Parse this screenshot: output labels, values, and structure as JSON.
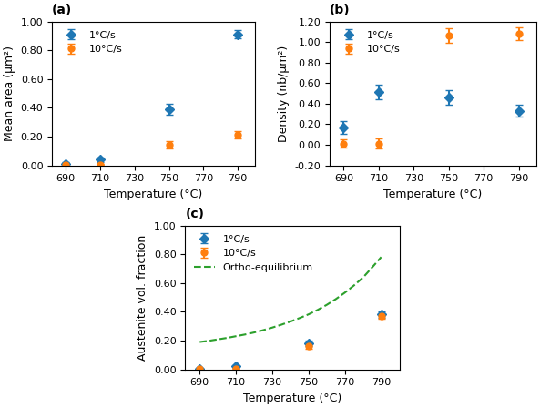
{
  "chart_data": [
    {
      "type": "errorbar",
      "title": "(a)",
      "x_label": "Temperature (°C)",
      "y_label": "Mean area (μm²)",
      "xlim": [
        682,
        800
      ],
      "xticks": [
        690,
        710,
        730,
        750,
        770,
        790
      ],
      "ylim": [
        0,
        1.0
      ],
      "yticks": [
        {
          "value": 0.0,
          "label": "0.00"
        },
        {
          "value": 0.2,
          "label": "0.20"
        },
        {
          "value": 0.4,
          "label": "0.40"
        },
        {
          "value": 0.6,
          "label": "0.60"
        },
        {
          "value": 0.8,
          "label": "0.80"
        },
        {
          "value": 1.0,
          "label": "1.00"
        }
      ],
      "legend": "upper left",
      "series": [
        {
          "name": "1°C/s",
          "type": "errorbar",
          "marker": "diamond",
          "x": [
            690,
            710,
            750,
            790
          ],
          "values": [
            0.01,
            0.04,
            0.39,
            0.91
          ],
          "errors": [
            0.01,
            0.015,
            0.04,
            0.03
          ]
        },
        {
          "name": "10°C/s",
          "type": "errorbar",
          "marker": "circle",
          "x": [
            690,
            710,
            750,
            790
          ],
          "values": [
            0.005,
            0.006,
            0.14,
            0.21
          ],
          "errors": [
            0.004,
            0.004,
            0.025,
            0.025
          ]
        }
      ]
    },
    {
      "type": "errorbar",
      "title": "(b)",
      "x_label": "Temperature (°C)",
      "y_label": "Density (nb/μm²)",
      "xlim": [
        682,
        800
      ],
      "xticks": [
        690,
        710,
        730,
        750,
        770,
        790
      ],
      "ylim": [
        -0.2,
        1.2
      ],
      "yticks": [
        {
          "value": -0.2,
          "label": "-0.20"
        },
        {
          "value": 0.0,
          "label": "0.00"
        },
        {
          "value": 0.2,
          "label": "0.20"
        },
        {
          "value": 0.4,
          "label": "0.40"
        },
        {
          "value": 0.6,
          "label": "0.60"
        },
        {
          "value": 0.8,
          "label": "0.80"
        },
        {
          "value": 1.0,
          "label": "1.00"
        },
        {
          "value": 1.2,
          "label": "1.20"
        }
      ],
      "legend": "upper left",
      "series": [
        {
          "name": "1°C/s",
          "type": "errorbar",
          "marker": "diamond",
          "x": [
            690,
            710,
            750,
            790
          ],
          "values": [
            0.17,
            0.51,
            0.46,
            0.33
          ],
          "errors": [
            0.06,
            0.07,
            0.07,
            0.06
          ]
        },
        {
          "name": "10°C/s",
          "type": "errorbar",
          "marker": "circle",
          "x": [
            690,
            710,
            750,
            790
          ],
          "values": [
            0.01,
            0.01,
            1.06,
            1.08
          ],
          "errors": [
            0.04,
            0.05,
            0.07,
            0.06
          ]
        }
      ]
    },
    {
      "type": "errorbar",
      "title": "(c)",
      "x_label": "Temperature (°C)",
      "y_label": "Austenite vol. fraction",
      "xlim": [
        682,
        800
      ],
      "xticks": [
        690,
        710,
        730,
        750,
        770,
        790
      ],
      "ylim": [
        0,
        1.0
      ],
      "yticks": [
        {
          "value": 0.0,
          "label": "0.00"
        },
        {
          "value": 0.2,
          "label": "0.20"
        },
        {
          "value": 0.4,
          "label": "0.40"
        },
        {
          "value": 0.6,
          "label": "0.60"
        },
        {
          "value": 0.8,
          "label": "0.80"
        },
        {
          "value": 1.0,
          "label": "1.00"
        }
      ],
      "legend": "upper left",
      "series": [
        {
          "name": "1°C/s",
          "type": "errorbar",
          "marker": "diamond",
          "x": [
            690,
            710,
            750,
            790
          ],
          "values": [
            0.005,
            0.02,
            0.18,
            0.38
          ],
          "errors": [
            0.003,
            0.006,
            0.02,
            0.02
          ]
        },
        {
          "name": "10°C/s",
          "type": "errorbar",
          "marker": "circle",
          "x": [
            690,
            710,
            750,
            790
          ],
          "values": [
            0.003,
            0.006,
            0.16,
            0.37
          ],
          "errors": [
            0.002,
            0.004,
            0.015,
            0.02
          ]
        },
        {
          "name": "Ortho-equilibrium",
          "type": "line",
          "line_style": "dashed",
          "x": [
            690,
            695,
            700,
            705,
            710,
            715,
            720,
            725,
            730,
            735,
            740,
            745,
            750,
            755,
            760,
            765,
            770,
            775,
            780,
            785,
            790
          ],
          "values": [
            0.19,
            0.198,
            0.208,
            0.218,
            0.23,
            0.242,
            0.256,
            0.272,
            0.29,
            0.31,
            0.332,
            0.356,
            0.382,
            0.413,
            0.448,
            0.488,
            0.533,
            0.583,
            0.638,
            0.708,
            0.78
          ]
        }
      ]
    }
  ]
}
